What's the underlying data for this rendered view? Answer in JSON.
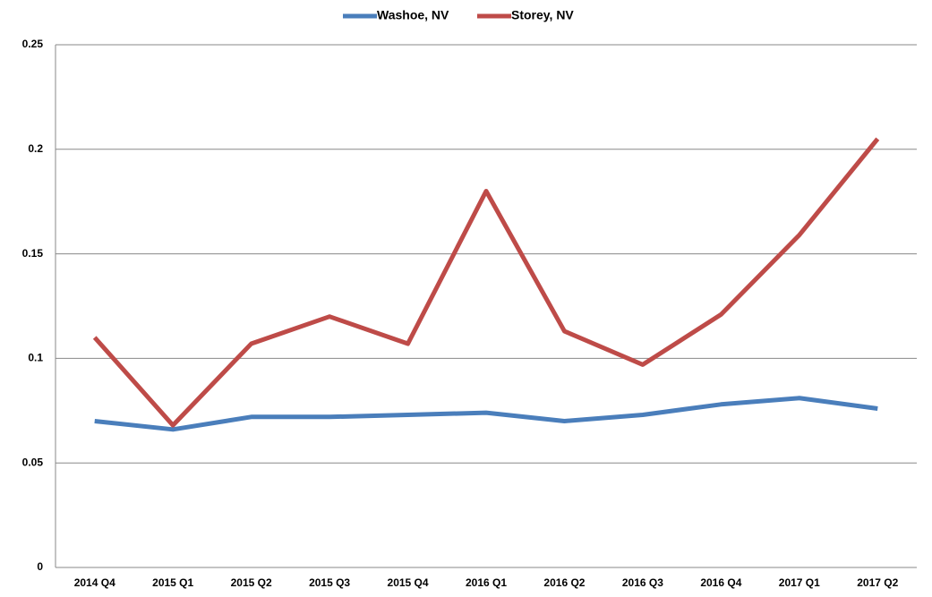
{
  "chart_data": {
    "type": "line",
    "categories": [
      "2014 Q4",
      "2015 Q1",
      "2015 Q2",
      "2015 Q3",
      "2015 Q4",
      "2016 Q1",
      "2016 Q2",
      "2016 Q3",
      "2016 Q4",
      "2017 Q1",
      "2017 Q2"
    ],
    "series": [
      {
        "name": "Washoe, NV",
        "color": "#4a7ebb",
        "values": [
          0.07,
          0.066,
          0.072,
          0.072,
          0.073,
          0.074,
          0.07,
          0.073,
          0.078,
          0.081,
          0.076
        ]
      },
      {
        "name": "Storey, NV",
        "color": "#be4b48",
        "values": [
          0.11,
          0.068,
          0.107,
          0.12,
          0.107,
          0.18,
          0.113,
          0.097,
          0.121,
          0.159,
          0.205
        ]
      }
    ],
    "ylim": [
      0,
      0.25
    ],
    "yticks": [
      0,
      0.05,
      0.1,
      0.15,
      0.2,
      0.25
    ],
    "grid": true,
    "legend": "top"
  }
}
